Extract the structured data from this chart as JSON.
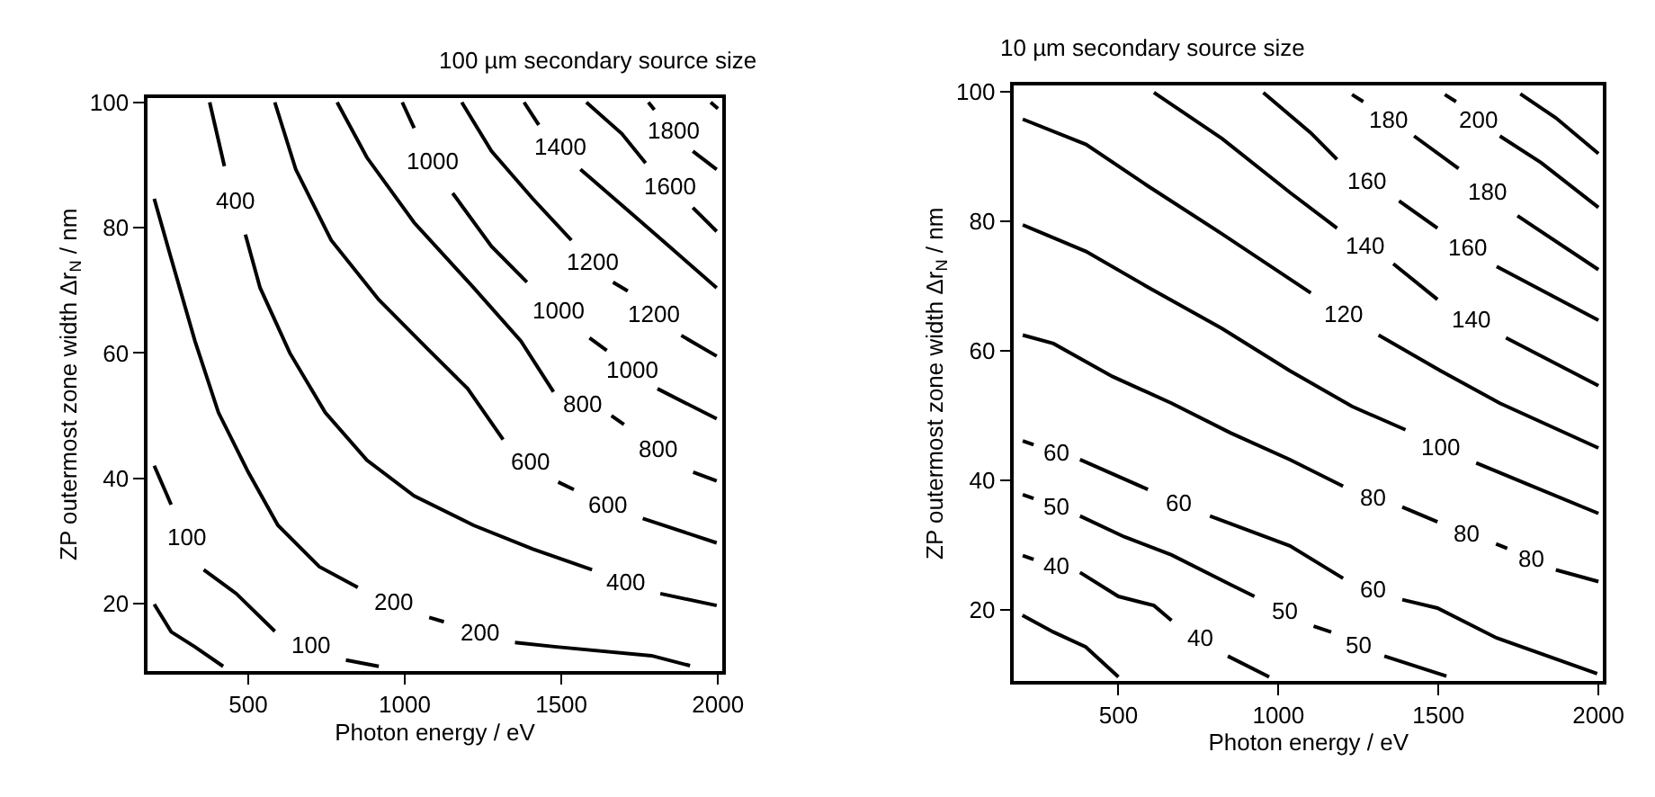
{
  "chart_data": [
    {
      "type": "line",
      "title": "100 µm secondary source size",
      "xlabel": "Photon energy / eV",
      "ylabel": "ZP outermost zone width Δr$_{N}$ / nm",
      "xlim": [
        178,
        2015
      ],
      "ylim": [
        9.3,
        100.7
      ],
      "xticks": [
        500,
        1000,
        1500,
        2000
      ],
      "yticks": [
        20,
        40,
        60,
        80,
        100
      ],
      "series": [
        {
          "color": "#000000",
          "x": [
            200,
            254,
            330,
            420
          ],
          "values": [
            19.9,
            15.5,
            13.1,
            10.0
          ]
        },
        {
          "name": "100",
          "color": "#000000",
          "x": [
            200,
            254,
            300,
            358,
            462,
            585,
            700,
            812,
            917
          ],
          "values": [
            42.0,
            35.8,
            null,
            25.4,
            21.6,
            15.6,
            null,
            11.0,
            10.0
          ]
        },
        {
          "name": "200",
          "color": "#000000",
          "x": [
            200,
            254,
            330,
            405,
            500,
            595,
            727,
            850,
            964,
            1078,
            1125,
            1239,
            1352,
            1485,
            1788,
            1911
          ],
          "values": [
            84.6,
            75.1,
            61.9,
            50.5,
            41.0,
            32.5,
            25.9,
            22.6,
            null,
            17.8,
            17.1,
            null,
            13.8,
            13.1,
            11.7,
            10.1
          ]
        },
        {
          "name": "400",
          "color": "#000000",
          "x": [
            377,
            424,
            462,
            491,
            538,
            633,
            746,
            879,
            1030,
            1220,
            1409,
            1598,
            1693,
            1816,
            1996
          ],
          "values": [
            100,
            89.8,
            null,
            78.9,
            70.4,
            60.0,
            50.5,
            42.9,
            37.2,
            32.5,
            28.7,
            25.4,
            null,
            21.6,
            19.7
          ]
        },
        {
          "name": "600",
          "color": "#000000",
          "x": [
            585,
            652,
            765,
            917,
            1068,
            1201,
            1314,
            1400,
            1490,
            1540,
            1636,
            1760,
            1996
          ],
          "values": [
            100,
            89.3,
            78.0,
            68.5,
            60.9,
            54.3,
            46.2,
            null,
            39.4,
            38.2,
            null,
            33.6,
            29.7
          ]
        },
        {
          "name": "800",
          "color": "#000000",
          "x": [
            784,
            879,
            1030,
            1220,
            1371,
            1475,
            1570,
            1660,
            1700,
            1788,
            1921,
            1996
          ],
          "values": [
            100,
            91.2,
            80.8,
            70.4,
            61.9,
            53.8,
            null,
            50.0,
            48.6,
            null,
            41.0,
            39.6
          ]
        },
        {
          "name": "1000",
          "color": "#000000",
          "x": [
            992,
            1030,
            1097,
            1153,
            1277,
            1390,
            1494,
            1590,
            1645,
            1722,
            1807,
            1996
          ],
          "values": [
            100,
            95.9,
            null,
            85.5,
            77.0,
            71.3,
            null,
            62.4,
            60.4,
            null,
            54.3,
            49.5
          ]
        },
        {
          "name": "1200",
          "color": "#000000",
          "x": [
            1182,
            1277,
            1409,
            1532,
            1598,
            1665,
            1712,
            1797,
            1883,
            1996
          ],
          "values": [
            100,
            92.2,
            84.6,
            78.0,
            null,
            71.3,
            69.9,
            null,
            62.8,
            59.5
          ]
        },
        {
          "name": "1400",
          "color": "#000000",
          "x": [
            1381,
            1428,
            1504,
            1561,
            1693,
            1845,
            1996
          ],
          "values": [
            100,
            96.4,
            null,
            89.3,
            83.6,
            77.0,
            70.4
          ]
        },
        {
          "name": "1600",
          "color": "#000000",
          "x": [
            1580,
            1693,
            1769,
            1835,
            1920,
            1996
          ],
          "values": [
            100,
            95.0,
            90.3,
            null,
            83.2,
            79.4
          ]
        },
        {
          "name": "1800",
          "color": "#000000",
          "x": [
            1778,
            1797,
            1854,
            1920,
            1996
          ],
          "values": [
            100,
            98.8,
            null,
            92.2,
            89.3
          ]
        },
        {
          "color": "#000000",
          "x": [
            1977,
            2000
          ],
          "values": [
            100,
            99
          ]
        }
      ]
    },
    {
      "type": "line",
      "title": "10 µm secondary source size",
      "xlabel": "Photon energy / eV",
      "ylabel": "ZP outermost zone width Δr$_{N}$ / nm",
      "xlim": [
        173,
        2015
      ],
      "ylim": [
        9.0,
        100.9
      ],
      "xticks": [
        500,
        1000,
        1500,
        2000
      ],
      "yticks": [
        20,
        40,
        60,
        80,
        100
      ],
      "series": [
        {
          "color": "#000000",
          "x": [
            200,
            297,
            398,
            500
          ],
          "values": [
            19.2,
            16.6,
            14.3,
            9.7
          ]
        },
        {
          "name": "40",
          "color": "#000000",
          "x": [
            201,
            235,
            297,
            380,
            500,
            611,
            666,
            740,
            842,
            971
          ],
          "values": [
            28.4,
            27.8,
            null,
            25.8,
            22.1,
            20.7,
            18.4,
            null,
            12.9,
            9.7
          ]
        },
        {
          "name": "50",
          "color": "#000000",
          "x": [
            201,
            235,
            297,
            380,
            518,
            666,
            851,
            925,
            999,
            1110,
            1165,
            1239,
            1331,
            1525
          ],
          "values": [
            37.8,
            37.2,
            null,
            34.5,
            31.3,
            28.5,
            23.9,
            22.1,
            null,
            17.5,
            16.6,
            null,
            12.9,
            9.8
          ]
        },
        {
          "name": "60",
          "color": "#000000",
          "x": [
            201,
            235,
            297,
            380,
            592,
            694,
            786,
            1036,
            1202,
            1322,
            1387,
            1497,
            1682,
            1996
          ],
          "values": [
            46.1,
            45.5,
            null,
            43.2,
            38.6,
            null,
            34.5,
            29.9,
            24.9,
            null,
            21.6,
            20.3,
            15.7,
            10.2
          ]
        },
        {
          "name": "80",
          "color": "#000000",
          "x": [
            201,
            297,
            482,
            666,
            851,
            1036,
            1202,
            1294,
            1387,
            1497,
            1599,
            1680,
            1715,
            1786,
            1867,
            2000
          ],
          "values": [
            62.4,
            61.1,
            56.0,
            51.9,
            47.3,
            43.2,
            39.1,
            null,
            35.9,
            33.6,
            null,
            30.2,
            29.5,
            null,
            26.2,
            24.4
          ]
        },
        {
          "name": "100",
          "color": "#000000",
          "x": [
            201,
            399,
            592,
            824,
            1036,
            1230,
            1397,
            1507,
            1618,
            1774,
            2000
          ],
          "values": [
            79.4,
            75.3,
            69.8,
            63.4,
            56.9,
            51.4,
            47.8,
            null,
            42.7,
            39.5,
            34.9
          ]
        },
        {
          "name": "120",
          "color": "#000000",
          "x": [
            201,
            399,
            592,
            824,
            1101,
            1203,
            1313,
            1507,
            1692,
            2000
          ],
          "values": [
            95.7,
            91.8,
            85.4,
            78.0,
            68.9,
            null,
            62.4,
            56.9,
            51.9,
            45.0
          ]
        },
        {
          "name": "140",
          "color": "#000000",
          "x": [
            611,
            824,
            1036,
            1183,
            1257,
            1359,
            1497,
            1599,
            1711,
            2000
          ],
          "values": [
            99.8,
            92.7,
            84.4,
            78.9,
            null,
            73.4,
            67.9,
            null,
            62.0,
            54.6
          ]
        },
        {
          "name": "160",
          "color": "#000000",
          "x": [
            953,
            1101,
            1183,
            1294,
            1377,
            1497,
            1599,
            1682,
            2000
          ],
          "values": [
            99.8,
            93.6,
            89.5,
            null,
            83.1,
            78.9,
            null,
            73.0,
            64.7
          ]
        },
        {
          "name": "180",
          "color": "#000000",
          "x": [
            1230,
            1265,
            1337,
            1424,
            1563,
            1664,
            1747,
            2000
          ],
          "values": [
            99.5,
            98.4,
            null,
            93.1,
            88.1,
            null,
            80.8,
            72.5
          ]
        },
        {
          "name": "200",
          "color": "#000000",
          "x": [
            1520,
            1555,
            1616,
            1692,
            1821,
            2000
          ],
          "values": [
            99.5,
            98.4,
            null,
            93.1,
            89.0,
            82.1
          ]
        },
        {
          "color": "#000000",
          "x": [
            1756,
            1867,
            2000
          ],
          "values": [
            99.6,
            95.9,
            90.4
          ]
        }
      ]
    }
  ]
}
